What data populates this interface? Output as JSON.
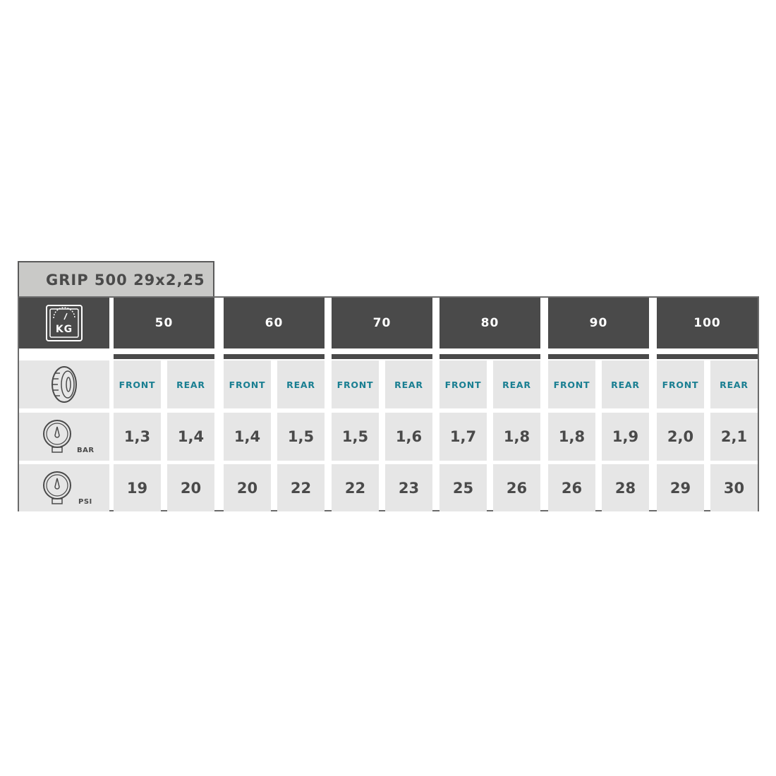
{
  "title": "GRIP 500 29x2,25",
  "colors": {
    "header_bg": "#4a4a4a",
    "cell_bg": "#e6e6e6",
    "label_color": "#1a7f92",
    "title_bg": "#c9c9c7"
  },
  "row_icons": {
    "weight": "weight-scale-icon",
    "weight_text": "KG",
    "tyre": "tyre-icon",
    "bar": "pressure-gauge-icon",
    "bar_unit": "BAR",
    "psi": "pressure-gauge-icon",
    "psi_unit": "PSI"
  },
  "groups": [
    {
      "weight": "50",
      "front_label": "FRONT",
      "rear_label": "REAR",
      "bar": {
        "front": "1,3",
        "rear": "1,4"
      },
      "psi": {
        "front": "19",
        "rear": "20"
      }
    },
    {
      "weight": "60",
      "front_label": "FRONT",
      "rear_label": "REAR",
      "bar": {
        "front": "1,4",
        "rear": "1,5"
      },
      "psi": {
        "front": "20",
        "rear": "22"
      }
    },
    {
      "weight": "70",
      "front_label": "FRONT",
      "rear_label": "REAR",
      "bar": {
        "front": "1,5",
        "rear": "1,6"
      },
      "psi": {
        "front": "22",
        "rear": "23"
      }
    },
    {
      "weight": "80",
      "front_label": "FRONT",
      "rear_label": "REAR",
      "bar": {
        "front": "1,7",
        "rear": "1,8"
      },
      "psi": {
        "front": "25",
        "rear": "26"
      }
    },
    {
      "weight": "90",
      "front_label": "FRONT",
      "rear_label": "REAR",
      "bar": {
        "front": "1,8",
        "rear": "1,9"
      },
      "psi": {
        "front": "26",
        "rear": "28"
      }
    },
    {
      "weight": "100",
      "front_label": "FRONT",
      "rear_label": "REAR",
      "bar": {
        "front": "2,0",
        "rear": "2,1"
      },
      "psi": {
        "front": "29",
        "rear": "30"
      }
    }
  ]
}
